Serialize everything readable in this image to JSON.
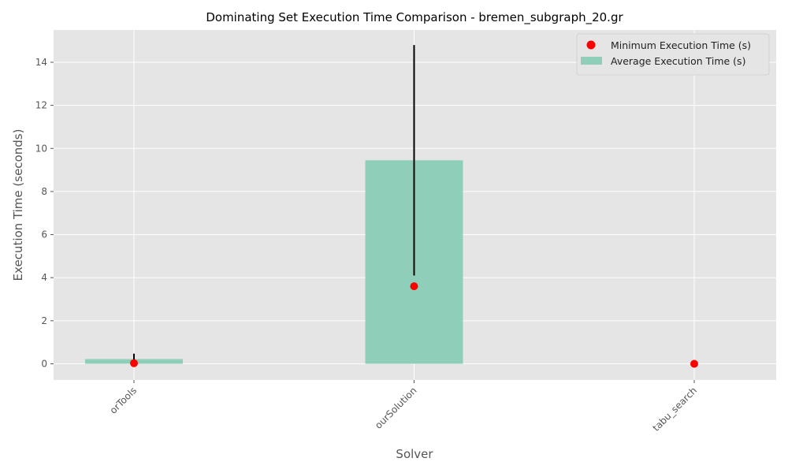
{
  "chart_data": {
    "type": "bar",
    "title": "Dominating Set Execution Time Comparison - bremen_subgraph_20.gr",
    "xlabel": "Solver",
    "ylabel": "Execution Time (seconds)",
    "categories": [
      "orTools",
      "ourSolution",
      "tabu_search"
    ],
    "series": [
      {
        "name": "Average Execution Time (s)",
        "kind": "bar",
        "values": [
          0.22,
          9.45,
          0.0
        ],
        "error": [
          0.25,
          5.35,
          0.0
        ]
      },
      {
        "name": "Minimum Execution Time (s)",
        "kind": "scatter",
        "values": [
          0.03,
          3.6,
          0.0
        ]
      }
    ],
    "ylim": [
      -0.75,
      15.5
    ],
    "yticks": [
      0,
      2,
      4,
      6,
      8,
      10,
      12,
      14
    ],
    "grid": true,
    "legend": "top-right",
    "colors": {
      "bar": "#8fcfb9",
      "scatter": "#ff0000",
      "error": "#000000",
      "plot_bg": "#e5e5e5",
      "grid": "#ffffff",
      "text": "#555555"
    }
  }
}
